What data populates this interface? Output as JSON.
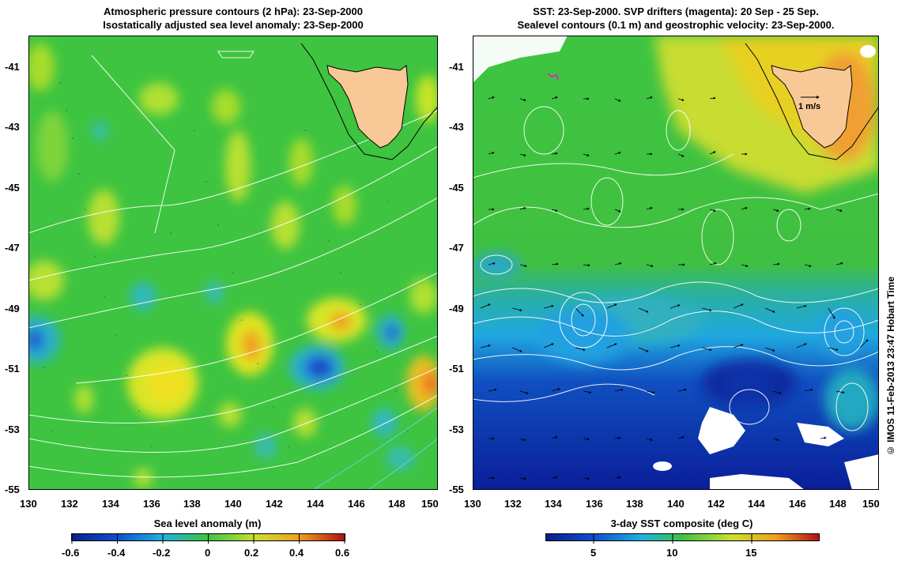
{
  "left_panel": {
    "title_line1": "Atmospheric pressure contours (2 hPa): 23-Sep-2000",
    "title_line2": "Isostatically adjusted sea level anomaly: 23-Sep-2000",
    "colorbar_title": "Sea level anomaly (m)",
    "colorbar_ticks": [
      "-0.6",
      "-0.4",
      "-0.2",
      "0",
      "0.2",
      "0.4",
      "0.6"
    ]
  },
  "right_panel": {
    "title_line1": "SST: 23-Sep-2000. SVP drifters (magenta): 20 Sep - 25 Sep.",
    "title_line2": "Sealevel contours (0.1 m) and geostrophic velocity: 23-Sep-2000.",
    "colorbar_title": "3-day SST composite (deg C)",
    "colorbar_ticks": [
      "5",
      "10",
      "15"
    ],
    "scale_arrow_label": "1 m/s"
  },
  "axes": {
    "lat_ticks": [
      "-41",
      "-43",
      "-45",
      "-47",
      "-49",
      "-51",
      "-53",
      "-55"
    ],
    "lon_ticks": [
      "130",
      "132",
      "134",
      "136",
      "138",
      "140",
      "142",
      "144",
      "146",
      "148",
      "150"
    ]
  },
  "credit": "© IMOS 11-Feb-2013 23:47 Hobart Time",
  "colors": {
    "land": "#f9c897",
    "sla_bg": "#3ec441",
    "sst_cold": "#0a1e9a",
    "sst_warm": "#e8d020"
  },
  "map_data": {
    "region": "Tasmania / Southern Ocean",
    "lon_range": [
      130,
      150
    ],
    "lat_range": [
      -55,
      -40
    ],
    "date": "23-Sep-2000"
  }
}
